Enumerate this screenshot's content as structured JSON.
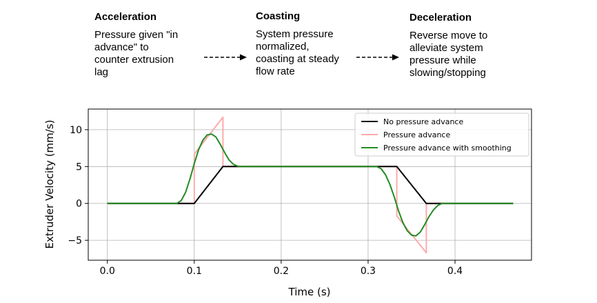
{
  "phases": [
    {
      "title": "Acceleration",
      "desc": "Pressure given \"in\nadvance\" to\ncounter extrusion\nlag"
    },
    {
      "title": "Coasting",
      "desc": "System pressure\nnormalized,\ncoasting at steady\nflow rate"
    },
    {
      "title": "Deceleration",
      "desc": "Reverse move to\nalleviate system\npressure while\nslowing/stopping"
    }
  ],
  "chart_data": {
    "type": "line",
    "title": "",
    "xlabel": "Time (s)",
    "ylabel": "Extruder Velocity (mm/s)",
    "xlim": [
      -0.022,
      0.488
    ],
    "ylim": [
      -7.7,
      12.8
    ],
    "xticks": [
      0.0,
      0.1,
      0.2,
      0.3,
      0.4
    ],
    "xtick_labels": [
      "0.0",
      "0.1",
      "0.2",
      "0.3",
      "0.4"
    ],
    "yticks": [
      -5,
      0,
      5,
      10
    ],
    "ytick_labels": [
      "−5",
      "0",
      "5",
      "10"
    ],
    "grid": true,
    "legend_position": "top-right",
    "series": [
      {
        "name": "No pressure advance",
        "color": "#000000",
        "x": [
          0.0,
          0.1,
          0.133,
          0.333,
          0.367,
          0.467
        ],
        "y": [
          0,
          0,
          5,
          5,
          0,
          0
        ]
      },
      {
        "name": "Pressure advance",
        "color": "#ffaaaa",
        "x": [
          0.0,
          0.1,
          0.1,
          0.133,
          0.133,
          0.333,
          0.333,
          0.367,
          0.367,
          0.467
        ],
        "y": [
          0,
          0,
          6.7,
          11.7,
          5,
          5,
          -1.7,
          -6.7,
          0,
          0
        ]
      },
      {
        "name": "Pressure advance with smoothing",
        "color": "#228b22",
        "x": [
          0.0,
          0.08,
          0.085,
          0.09,
          0.095,
          0.1,
          0.105,
          0.11,
          0.115,
          0.12,
          0.125,
          0.13,
          0.135,
          0.14,
          0.145,
          0.15,
          0.155,
          0.31,
          0.315,
          0.32,
          0.325,
          0.33,
          0.335,
          0.34,
          0.345,
          0.35,
          0.355,
          0.36,
          0.365,
          0.37,
          0.375,
          0.38,
          0.385,
          0.467
        ],
        "y": [
          0,
          0,
          0.4,
          1.5,
          3.3,
          5.4,
          7.3,
          8.6,
          9.3,
          9.4,
          9.0,
          8.0,
          6.9,
          5.9,
          5.3,
          5.05,
          5.0,
          5.0,
          4.7,
          3.9,
          2.6,
          0.9,
          -1.0,
          -2.6,
          -3.7,
          -4.3,
          -4.4,
          -3.9,
          -2.9,
          -1.8,
          -0.9,
          -0.3,
          0,
          0
        ]
      }
    ]
  }
}
